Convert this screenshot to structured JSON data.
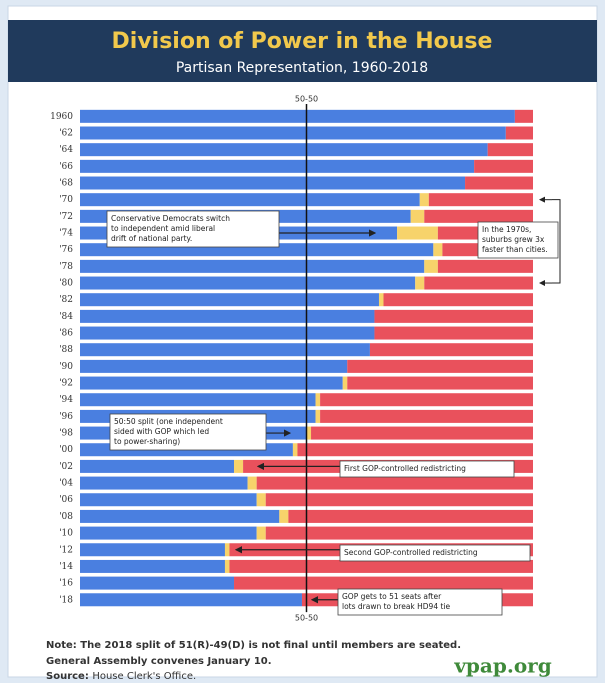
{
  "chart_data": {
    "type": "stacked-barh",
    "title": "Division of Power in the House",
    "subtitle": "Partisan Representation, 1960-2018",
    "categories": [
      "1960",
      "'62",
      "'64",
      "'66",
      "'68",
      "'70",
      "'72",
      "'74",
      "'76",
      "'78",
      "'80",
      "'82",
      "'84",
      "'86",
      "'88",
      "'90",
      "'92",
      "'94",
      "'96",
      "'98",
      "'00",
      "'02",
      "'04",
      "'06",
      "'08",
      "'10",
      "'12",
      "'14",
      "'16",
      "'18"
    ],
    "series": [
      {
        "color": "#4a7fe0",
        "values": [
          96,
          94,
          90,
          87,
          85,
          75,
          73,
          70,
          78,
          76,
          74,
          66,
          65,
          65,
          64,
          59,
          58,
          52,
          52,
          50,
          47,
          34,
          37,
          39,
          44,
          39,
          32,
          32,
          34,
          49
        ]
      },
      {
        "color": "#f7d36b",
        "values": [
          0,
          0,
          0,
          0,
          0,
          2,
          3,
          9,
          2,
          3,
          2,
          1,
          0,
          0,
          0,
          0,
          1,
          1,
          1,
          1,
          1,
          2,
          2,
          2,
          2,
          2,
          1,
          1,
          0,
          0
        ]
      },
      {
        "color": "#e9515c",
        "values": [
          4,
          6,
          10,
          13,
          15,
          23,
          24,
          21,
          20,
          21,
          24,
          33,
          35,
          35,
          36,
          41,
          41,
          47,
          47,
          49,
          52,
          64,
          61,
          59,
          54,
          59,
          67,
          67,
          66,
          51
        ]
      }
    ],
    "xlim": [
      0,
      100
    ],
    "midline": {
      "value": 50,
      "label": "50-50"
    },
    "annotations": [
      [
        "Conservative Democrats switch",
        "to independent amid liberal",
        "drift of national party."
      ],
      [
        "In the 1970s,",
        "suburbs grew 3x",
        "faster than cities."
      ],
      [
        "50:50 split (one independent",
        "sided with GOP which led",
        "to power-sharing)"
      ],
      [
        "First GOP-controlled redistricting"
      ],
      [
        "Second GOP-controlled redistricting"
      ],
      [
        "GOP gets to 51 seats after",
        "lots drawn to break HD94 tie"
      ]
    ],
    "note": "Note: The 2018 split of 51(R)-49(D) is not final until members are seated.",
    "note2": "General Assembly convenes January 10.",
    "source_label": "Source:",
    "source": "House Clerk's Office.",
    "logo": "vpap.org"
  }
}
